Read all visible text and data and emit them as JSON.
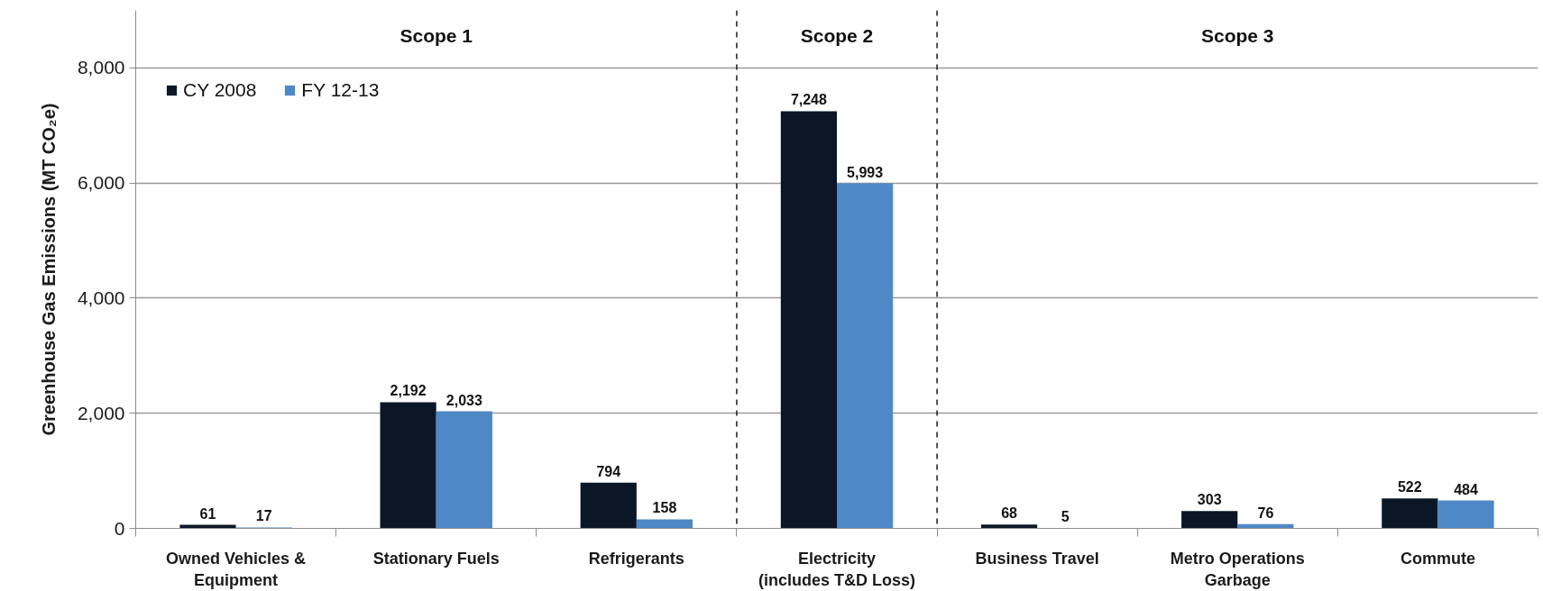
{
  "chart_data": {
    "type": "bar",
    "ylabel": "Greenhouse Gas Emissions (MT CO₂e)",
    "categories": [
      "Owned Vehicles & Equipment",
      "Stationary Fuels",
      "Refrigerants",
      "Electricity (includes T&D Loss)",
      "Business Travel",
      "Metro Operations Garbage",
      "Commute"
    ],
    "series": [
      {
        "name": "CY 2008",
        "color": "#0b1727",
        "values": [
          61,
          2192,
          794,
          7248,
          68,
          303,
          522
        ],
        "value_labels": [
          "61",
          "2,192",
          "794",
          "7,248",
          "68",
          "303",
          "522"
        ]
      },
      {
        "name": "FY 12-13",
        "color": "#4f88c6",
        "values": [
          17,
          2033,
          158,
          5993,
          5,
          76,
          484
        ],
        "value_labels": [
          "17",
          "2,033",
          "158",
          "5,993",
          "5",
          "76",
          "484"
        ]
      }
    ],
    "ylim": [
      0,
      9000
    ],
    "yticks": [
      0,
      {
        "value": 2000,
        "label": "2,000"
      },
      {
        "value": 4000,
        "label": "4,000"
      },
      {
        "value": 6000,
        "label": "6,000"
      },
      {
        "value": 8000,
        "label": "8,000"
      }
    ],
    "annotations": [
      "Scope 1",
      "Scope 2",
      "Scope 3"
    ],
    "grid": "y",
    "legend": "top left"
  }
}
